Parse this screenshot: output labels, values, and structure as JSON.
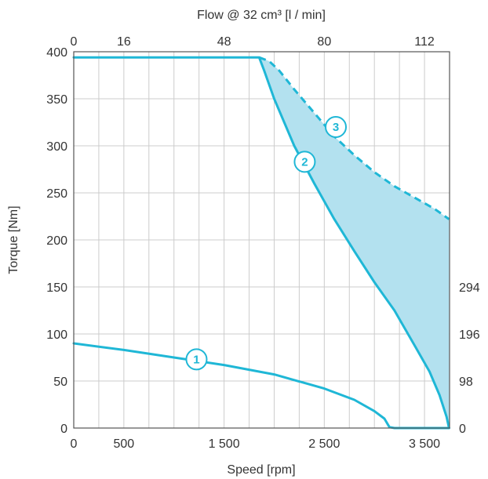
{
  "chart_data": {
    "type": "line",
    "xlabel": "Speed [rpm]",
    "ylabel": "Torque [Nm]",
    "top_axis_label": "Flow @ 32 cm³ [l / min]",
    "xlim": [
      0,
      3750
    ],
    "ylim": [
      0,
      400
    ],
    "bottom_ticks": [
      {
        "value": 0,
        "label": "0"
      },
      {
        "value": 500,
        "label": "500"
      },
      {
        "value": 1500,
        "label": "1 500"
      },
      {
        "value": 2500,
        "label": "2 500"
      },
      {
        "value": 3500,
        "label": "3 500"
      }
    ],
    "top_ticks": [
      {
        "value": 0,
        "label": "0"
      },
      {
        "value": 500,
        "label": "16"
      },
      {
        "value": 1500,
        "label": "48"
      },
      {
        "value": 2500,
        "label": "80"
      },
      {
        "value": 3500,
        "label": "112"
      }
    ],
    "left_ticks": [
      0,
      50,
      100,
      150,
      200,
      250,
      300,
      350,
      400
    ],
    "right_ticks": [
      {
        "value": 0,
        "label": "0"
      },
      {
        "value": 50,
        "label": "98"
      },
      {
        "value": 100,
        "label": "196"
      },
      {
        "value": 150,
        "label": "294"
      }
    ],
    "grid_x": [
      250,
      750,
      1000,
      1250,
      1750,
      2000,
      2250,
      2750,
      3000,
      3250
    ],
    "grid": true,
    "colors": {
      "curve": "#1fb7d6",
      "fill": "#b3e1ef",
      "grid": "#cccccc",
      "axis": "#555555"
    },
    "series": [
      {
        "label": "1",
        "style": "solid",
        "x": [
          0,
          500,
          1000,
          1500,
          2000,
          2500,
          2800,
          3000,
          3100,
          3150,
          3200,
          3300,
          3400,
          3500,
          3600,
          3745
        ],
        "y": [
          90,
          83,
          75,
          67,
          57,
          42,
          30,
          18,
          10,
          1,
          0,
          0,
          0,
          0,
          0,
          0
        ]
      },
      {
        "label": "2",
        "style": "solid",
        "x": [
          0,
          500,
          1000,
          1500,
          1850,
          1900,
          2000,
          2200,
          2400,
          2600,
          2800,
          3000,
          3200,
          3400,
          3550,
          3650,
          3720,
          3745
        ],
        "y": [
          394,
          394,
          394,
          394,
          394,
          380,
          350,
          300,
          260,
          222,
          188,
          155,
          125,
          88,
          60,
          35,
          12,
          0
        ]
      },
      {
        "label": "3",
        "style": "dashed",
        "x": [
          1850,
          1950,
          2050,
          2200,
          2400,
          2600,
          2800,
          3000,
          3200,
          3400,
          3600,
          3745
        ],
        "y": [
          394,
          390,
          380,
          360,
          335,
          310,
          290,
          272,
          257,
          245,
          233,
          222
        ]
      }
    ],
    "labels": [
      {
        "text": "1",
        "x": 1225,
        "y": 73
      },
      {
        "text": "2",
        "x": 2305,
        "y": 283
      },
      {
        "text": "3",
        "x": 2615,
        "y": 320
      }
    ]
  }
}
